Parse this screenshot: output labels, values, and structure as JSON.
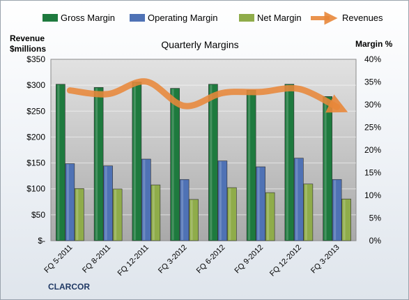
{
  "chart_data": {
    "type": "bar",
    "title": "Quarterly Margins",
    "left_axis_title_line1": "Revenue",
    "left_axis_title_line2": "$millions",
    "right_axis_title": "Margin %",
    "company_label": "CLARCOR",
    "categories": [
      "FQ 5-2011",
      "FQ 8-2011",
      "FQ 12-2011",
      "FQ 3-2012",
      "FQ 6-2012",
      "FQ 9-2012",
      "FQ 12-2012",
      "FQ 3-2013"
    ],
    "left_axis": {
      "range": [
        0,
        350
      ],
      "ticks": [
        0,
        50,
        100,
        150,
        200,
        250,
        300,
        350
      ],
      "tick_labels": [
        "$-",
        "$50",
        "$100",
        "$150",
        "$200",
        "$250",
        "$300",
        "$350"
      ]
    },
    "right_axis": {
      "range": [
        0,
        40
      ],
      "ticks": [
        0,
        5,
        10,
        15,
        20,
        25,
        30,
        35,
        40
      ],
      "tick_labels": [
        "0%",
        "5%",
        "10%",
        "15%",
        "20%",
        "25%",
        "30%",
        "35%",
        "40%"
      ]
    },
    "legend_position": "top",
    "grid": true,
    "series": [
      {
        "name": "Gross Margin",
        "type": "bar",
        "axis": "right",
        "color": "#1e7a3e",
        "values": [
          34.5,
          33.8,
          35.0,
          33.6,
          34.5,
          33.2,
          34.5,
          31.8
        ]
      },
      {
        "name": "Operating Margin",
        "type": "bar",
        "axis": "right",
        "color": "#4f72b5",
        "values": [
          17.0,
          16.5,
          18.0,
          13.5,
          17.6,
          16.3,
          18.2,
          13.5
        ]
      },
      {
        "name": "Net Margin",
        "type": "bar",
        "axis": "right",
        "color": "#8fac4a",
        "values": [
          11.5,
          11.4,
          12.3,
          9.1,
          11.7,
          10.6,
          12.5,
          9.2
        ]
      },
      {
        "name": "Revenues",
        "type": "line",
        "axis": "left",
        "color": "#e8873a",
        "values": [
          290,
          283,
          307,
          260,
          285,
          287,
          293,
          258
        ]
      }
    ]
  }
}
